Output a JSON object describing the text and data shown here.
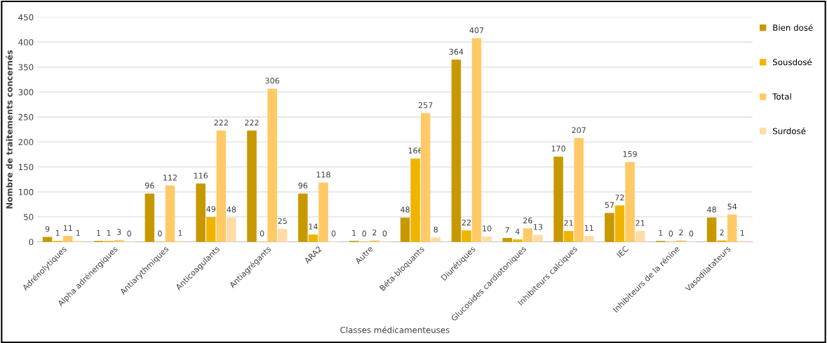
{
  "chart_data": {
    "type": "bar",
    "xlabel": "Classes médicamenteuses",
    "ylabel": "Nombre de traitements concernés",
    "categories": [
      "Adrénolytiques",
      "Alpha adrénergiques",
      "Antiarythmiques",
      "Anticoagulants",
      "Antiagrégants",
      "ARA2",
      "Autre",
      "Béta-bloquants",
      "Diurétiques",
      "Glucosides cardiotoniques",
      "Inhibiteurs calciques",
      "IEC",
      "Inhibiteurs de la rénine",
      "Vasodilatateurs"
    ],
    "series": [
      {
        "name": "Bien dosé",
        "color": "#c89800",
        "values": [
          9,
          1,
          96,
          116,
          222,
          96,
          1,
          48,
          364,
          7,
          170,
          57,
          1,
          48
        ]
      },
      {
        "name": "Sousdosé",
        "color": "#f0b400",
        "values": [
          1,
          1,
          0,
          49,
          0,
          14,
          0,
          166,
          22,
          4,
          21,
          72,
          0,
          2
        ]
      },
      {
        "name": "Total",
        "color": "#ffc966",
        "values": [
          11,
          3,
          112,
          222,
          306,
          118,
          2,
          257,
          407,
          26,
          207,
          159,
          2,
          54
        ]
      },
      {
        "name": "Surdosé",
        "color": "#ffdca6",
        "values": [
          1,
          0,
          1,
          48,
          25,
          0,
          0,
          8,
          10,
          13,
          11,
          21,
          0,
          1
        ]
      }
    ],
    "ylim": [
      0,
      450
    ],
    "yticks": [
      0,
      50,
      100,
      150,
      200,
      250,
      300,
      350,
      400,
      450
    ],
    "grid": "y",
    "legend": "right",
    "data_labels": true
  }
}
